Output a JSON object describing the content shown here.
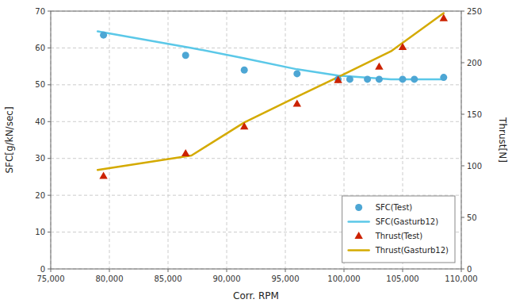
{
  "chart_data": {
    "type": "line",
    "xlabel": "Corr. RPM",
    "ylabel": "SFC[g/kN/sec]",
    "y2label": "Thrust[N]",
    "xlim": [
      75000,
      110000
    ],
    "ylim": [
      0,
      70
    ],
    "y2lim": [
      0,
      250
    ],
    "xticks": [
      {
        "value": 75000,
        "label": "75,000"
      },
      {
        "value": 80000,
        "label": "80,000"
      },
      {
        "value": 85000,
        "label": "85,000"
      },
      {
        "value": 90000,
        "label": "90,000"
      },
      {
        "value": 95000,
        "label": "95,000"
      },
      {
        "value": 100000,
        "label": "100,000"
      },
      {
        "value": 105000,
        "label": "105,000"
      },
      {
        "value": 110000,
        "label": "110,000"
      }
    ],
    "yticks": [
      0,
      10,
      20,
      30,
      40,
      50,
      60,
      70
    ],
    "y2ticks": [
      0,
      50,
      100,
      150,
      200,
      250
    ],
    "grid": true,
    "legend": "lower right",
    "series": [
      {
        "name": "SFC(Test)",
        "type": "scatter",
        "marker": "circle",
        "color": "#4da6d4",
        "x": [
          79500,
          86500,
          91500,
          96000,
          99500,
          100500,
          102000,
          103000,
          105000,
          106000,
          108500
        ],
        "values": [
          63.5,
          58.0,
          54.0,
          53.0,
          51.5,
          51.5,
          51.5,
          51.5,
          51.5,
          51.5,
          52.0
        ]
      },
      {
        "name": "SFC(Gasturb12)",
        "type": "line",
        "line_style": "solid",
        "color": "#5bc8e8",
        "x": [
          79000,
          87000,
          91500,
          96000,
          99500,
          104000,
          108500
        ],
        "values": [
          64.5,
          60.0,
          57.2,
          54.2,
          52.5,
          51.5,
          51.5
        ]
      },
      {
        "name": "Thrust(Test)",
        "type": "scatter",
        "marker": "triangle",
        "color": "#cc2200",
        "axis": "y2",
        "x": [
          79500,
          86500,
          91500,
          96000,
          99500,
          103000,
          105000,
          108500
        ],
        "values": [
          90,
          112,
          138,
          160,
          183,
          196,
          215,
          243
        ]
      },
      {
        "name": "Thrust(Gasturb12)",
        "type": "line",
        "line_style": "solid",
        "color": "#d4aa00",
        "axis": "y2",
        "x": [
          79000,
          87000,
          91500,
          96000,
          99500,
          104000,
          108500
        ],
        "values": [
          96,
          110,
          142,
          167,
          186,
          211,
          248
        ]
      }
    ]
  }
}
